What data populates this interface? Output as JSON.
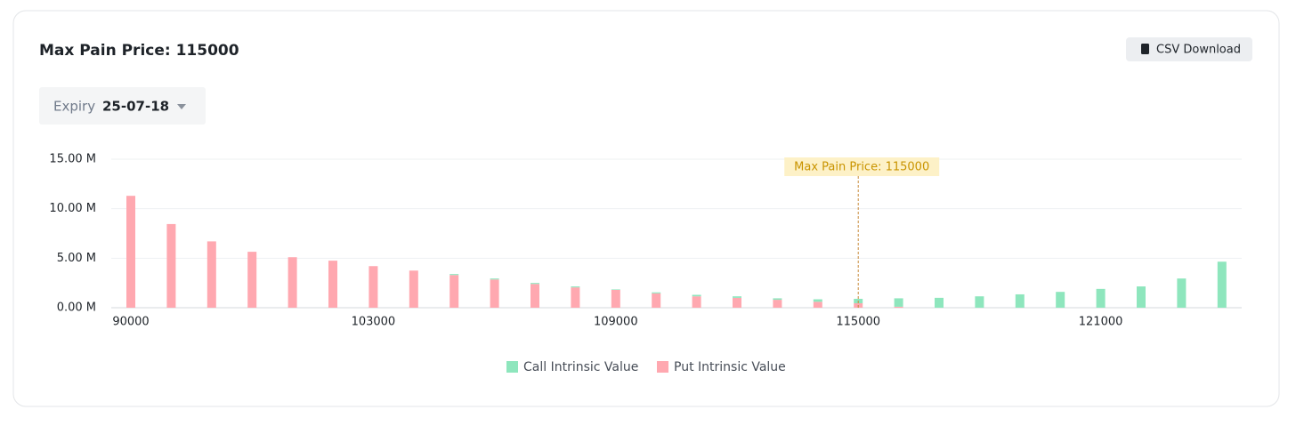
{
  "header": {
    "title": "Max Pain Price: 115000",
    "button": "CSV Download"
  },
  "filter": {
    "label": "Expiry",
    "value": "25-07-18"
  },
  "chart_data": {
    "type": "stacked_bar",
    "categories": [
      "90000",
      null,
      null,
      null,
      null,
      null,
      "103000",
      null,
      null,
      null,
      null,
      null,
      "109000",
      null,
      null,
      null,
      null,
      null,
      "115000",
      null,
      null,
      null,
      null,
      null,
      "121000",
      null,
      null,
      null
    ],
    "series": [
      {
        "name": "Call Intrinsic Value",
        "color": "#8ee6bd",
        "values": [
          0,
          0,
          0,
          0,
          0,
          0,
          0,
          0,
          0.1,
          0.1,
          0.1,
          0.1,
          0.05,
          0.1,
          0.15,
          0.15,
          0.15,
          0.25,
          0.45,
          0.85,
          1.0,
          1.15,
          1.35,
          1.6,
          1.9,
          2.15,
          2.95,
          4.65
        ]
      },
      {
        "name": "Put Intrinsic Value",
        "color": "#ffa8b0",
        "values": [
          11.3,
          8.45,
          6.7,
          5.65,
          5.1,
          4.75,
          4.2,
          3.75,
          3.3,
          2.85,
          2.4,
          2.05,
          1.8,
          1.45,
          1.15,
          1.0,
          0.8,
          0.6,
          0.45,
          0.1,
          0,
          0,
          0,
          0,
          0,
          0,
          0,
          0
        ]
      }
    ],
    "ylim": [
      0,
      15
    ],
    "yticks": [
      {
        "value": 0,
        "label": "0.00 M"
      },
      {
        "value": 5,
        "label": "5.00 M"
      },
      {
        "value": 10,
        "label": "10.00 M"
      },
      {
        "value": 15,
        "label": "15.00 M"
      }
    ],
    "grid": true,
    "legend": "bottom",
    "annotation": {
      "text": "Max Pain Price: 115000",
      "x": "115000"
    }
  }
}
